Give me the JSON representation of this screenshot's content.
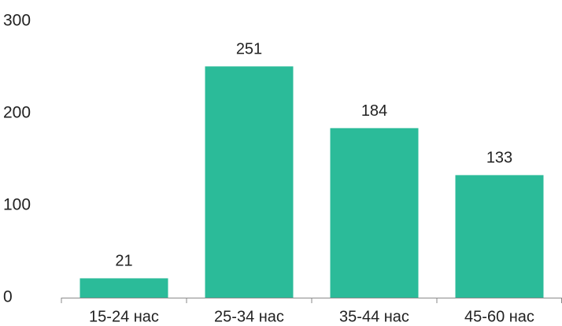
{
  "chart_data": {
    "type": "bar",
    "categories": [
      "15-24 нас",
      "25-34 нас",
      "35-44 нас",
      "45-60 нас"
    ],
    "values": [
      21,
      251,
      184,
      133
    ],
    "data_labels": [
      "21",
      "251",
      "184",
      "133"
    ],
    "y_ticks": [
      0,
      100,
      200,
      300
    ],
    "ylim": [
      0,
      300
    ],
    "title": "",
    "xlabel": "",
    "ylabel": "",
    "grid": false,
    "legend": "none",
    "bar_color": "#2bbb99"
  }
}
